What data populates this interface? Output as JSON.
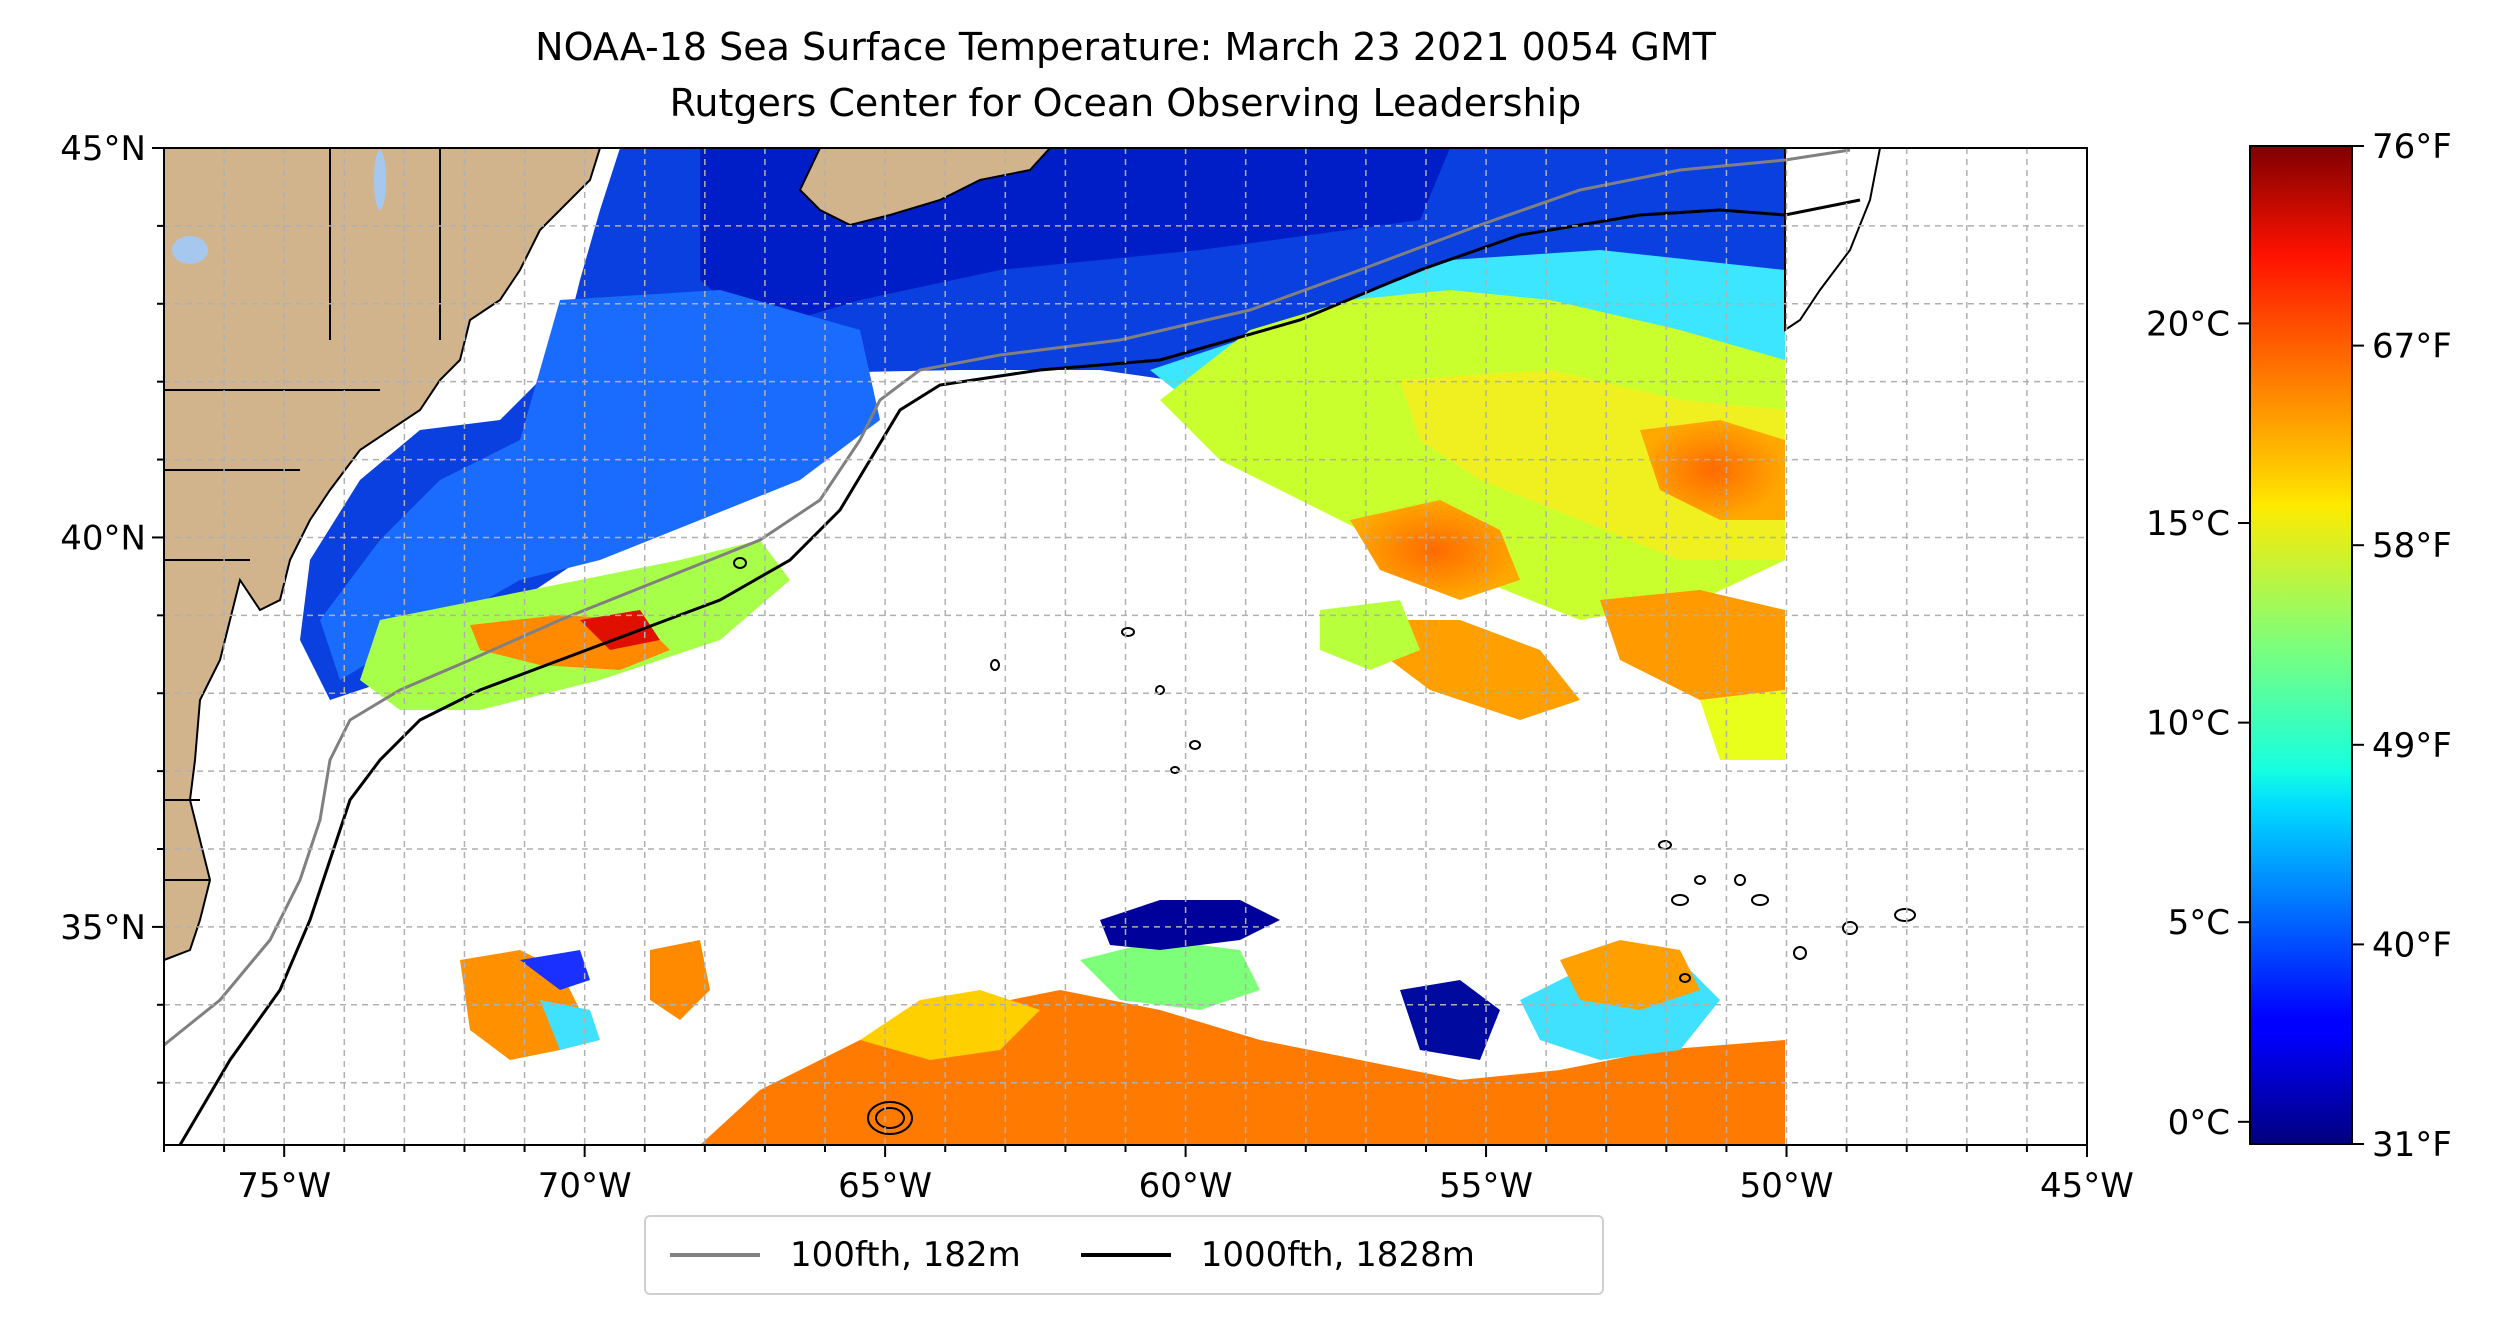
{
  "title_line1": "NOAA-18 Sea Surface Temperature: March 23 2021 0054 GMT",
  "title_line2": "Rutgers Center for Ocean Observing Leadership",
  "map": {
    "lon_range": [
      -77,
      -45
    ],
    "lat_range": [
      32.2,
      45
    ],
    "lon_ticks": [
      {
        "value": -75,
        "label": "75°W"
      },
      {
        "value": -70,
        "label": "70°W"
      },
      {
        "value": -65,
        "label": "65°W"
      },
      {
        "value": -60,
        "label": "60°W"
      },
      {
        "value": -55,
        "label": "55°W"
      },
      {
        "value": -50,
        "label": "50°W"
      },
      {
        "value": -45,
        "label": "45°W"
      }
    ],
    "lat_ticks": [
      {
        "value": 45,
        "label": "45°N"
      },
      {
        "value": 40,
        "label": "40°N"
      },
      {
        "value": 35,
        "label": "35°N"
      }
    ],
    "grid": true,
    "land_color": "#d2b48c",
    "lake_color": "#a6c8ee",
    "data_extent_east_lon": -50
  },
  "colorbar": {
    "colormap": "jet",
    "celsius_ticks": [
      {
        "value": 0,
        "label": "0°C"
      },
      {
        "value": 5,
        "label": "5°C"
      },
      {
        "value": 10,
        "label": "10°C"
      },
      {
        "value": 15,
        "label": "15°C"
      },
      {
        "value": 20,
        "label": "20°C"
      }
    ],
    "fahrenheit_ticks": [
      {
        "value": 31,
        "label": "31°F"
      },
      {
        "value": 40,
        "label": "40°F"
      },
      {
        "value": 49,
        "label": "49°F"
      },
      {
        "value": 58,
        "label": "58°F"
      },
      {
        "value": 67,
        "label": "67°F"
      },
      {
        "value": 76,
        "label": "76°F"
      }
    ],
    "range_f": [
      31,
      76
    ]
  },
  "legend": {
    "items": [
      {
        "label": "100fth, 182m",
        "color": "#808080"
      },
      {
        "label": "1000fth, 1828m",
        "color": "#000000"
      }
    ]
  }
}
